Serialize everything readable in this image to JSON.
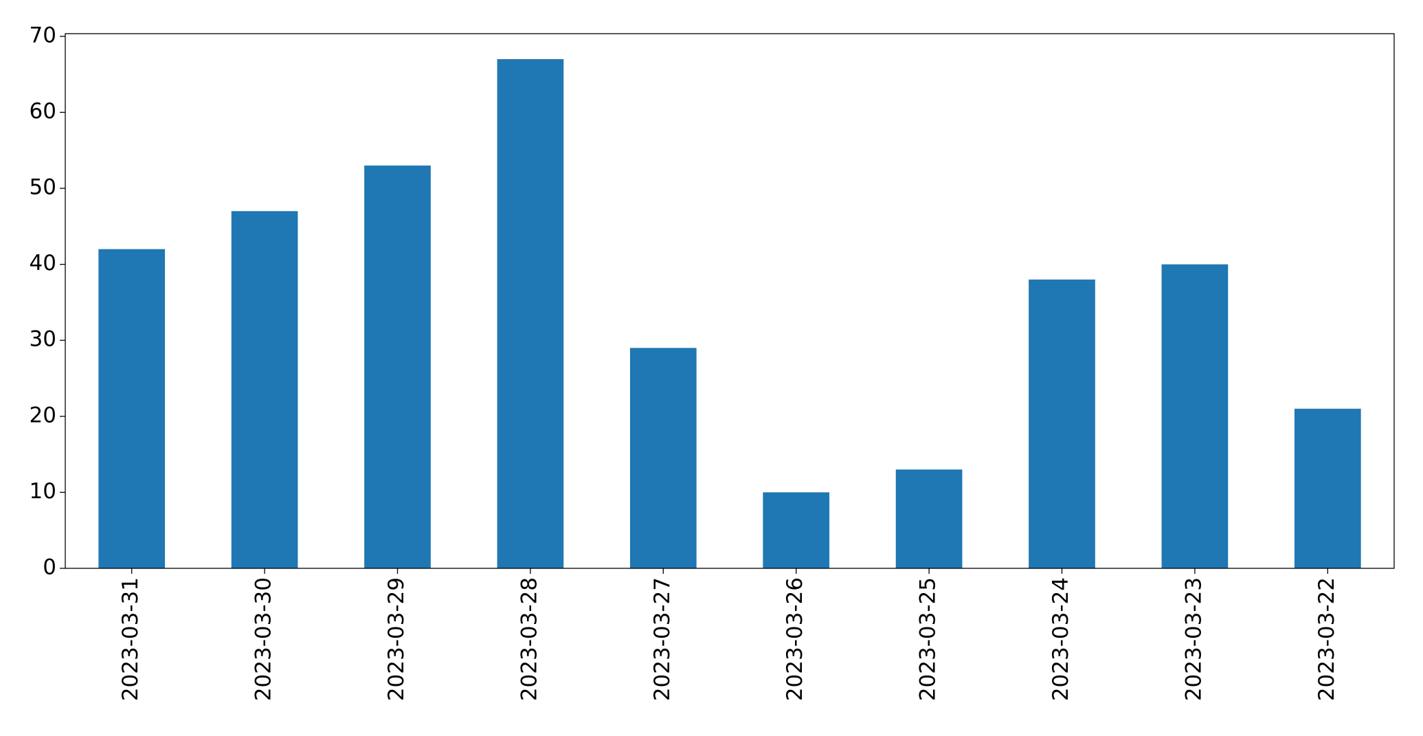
{
  "chart_data": {
    "type": "bar",
    "categories": [
      "2023-03-31",
      "2023-03-30",
      "2023-03-29",
      "2023-03-28",
      "2023-03-27",
      "2023-03-26",
      "2023-03-25",
      "2023-03-24",
      "2023-03-23",
      "2023-03-22"
    ],
    "values": [
      42,
      47,
      53,
      67,
      29,
      10,
      13,
      38,
      40,
      21
    ],
    "color": "#1f77b4",
    "ylim": [
      0,
      70.35
    ],
    "yticks": [
      0,
      10,
      20,
      30,
      40,
      50,
      60,
      70
    ],
    "grid": false
  }
}
